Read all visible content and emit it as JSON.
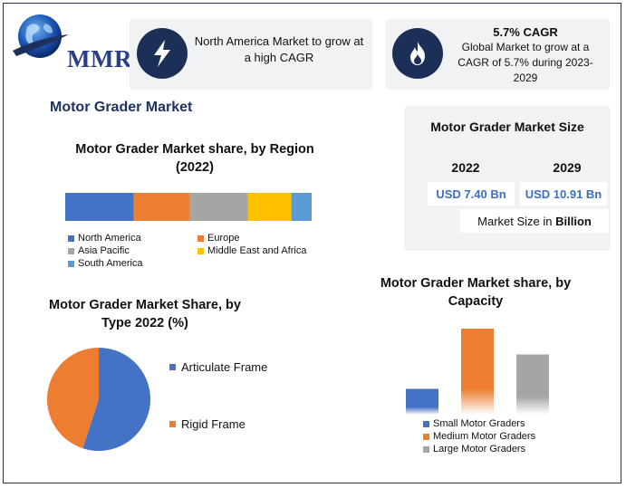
{
  "logo": {
    "text": "MMR"
  },
  "cards": {
    "north_america": {
      "text": "North America Market to grow at a high CAGR",
      "icon": "lightning-bolt-icon"
    },
    "global": {
      "title": "5.7% CAGR",
      "text": "Global Market to grow at a CAGR of 5.7% during 2023-2029",
      "icon": "flame-icon"
    }
  },
  "page_title": "Motor Grader Market",
  "market_size": {
    "title": "Motor Grader Market Size",
    "year_a": "2022",
    "year_b": "2029",
    "value_a": "USD 7.40 Bn",
    "value_b": "USD 10.91 Bn",
    "unit_prefix": "Market Size in ",
    "unit_bold": "Billion"
  },
  "chart_data": [
    {
      "type": "bar",
      "orientation": "stacked-horizontal",
      "title": "Motor Grader Market share, by Region (2022)",
      "series": [
        {
          "name": "North America",
          "value": 27,
          "color": "#4472c4"
        },
        {
          "name": "Europe",
          "value": 22,
          "color": "#ed7d31"
        },
        {
          "name": "Asia Pacific",
          "value": 23,
          "color": "#a5a5a5"
        },
        {
          "name": "Middle East and Africa",
          "value": 17,
          "color": "#ffc000"
        },
        {
          "name": "South America",
          "value": 8,
          "color": "#5b9bd5"
        }
      ],
      "legend": "bottom"
    },
    {
      "type": "pie",
      "title": "Motor Grader Market Share, by Type 2022 (%)",
      "slices": [
        {
          "name": "Articulate Frame",
          "value": 55,
          "color": "#4472c4"
        },
        {
          "name": "Rigid Frame",
          "value": 45,
          "color": "#ed7d31"
        }
      ],
      "legend": "right"
    },
    {
      "type": "bar",
      "title": "Motor Grader Market share, by Capacity",
      "categories": [
        "Small Motor Graders",
        "Medium Motor Graders",
        "Large Motor Graders"
      ],
      "values": [
        30,
        100,
        70
      ],
      "colors": [
        "#4472c4",
        "#ed7d31",
        "#a5a5a5"
      ],
      "legend": "bottom",
      "grid": false
    }
  ]
}
